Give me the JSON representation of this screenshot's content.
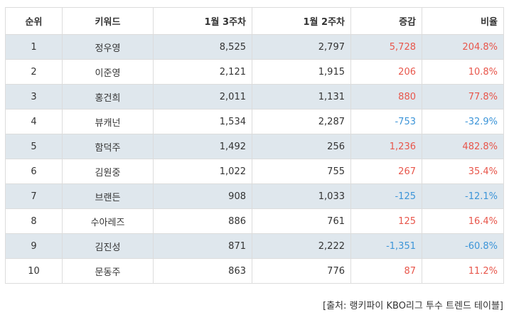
{
  "table": {
    "headers": {
      "rank": "순위",
      "keyword": "키워드",
      "week3": "1월 3주차",
      "week2": "1월 2주차",
      "change": "증감",
      "ratio": "비율"
    },
    "rows": [
      {
        "rank": "1",
        "keyword": "정우영",
        "week3": "8,525",
        "week2": "2,797",
        "change": "5,728",
        "ratio": "204.8%"
      },
      {
        "rank": "2",
        "keyword": "이준영",
        "week3": "2,121",
        "week2": "1,915",
        "change": "206",
        "ratio": "10.8%"
      },
      {
        "rank": "3",
        "keyword": "홍건희",
        "week3": "2,011",
        "week2": "1,131",
        "change": "880",
        "ratio": "77.8%"
      },
      {
        "rank": "4",
        "keyword": "뷰캐넌",
        "week3": "1,534",
        "week2": "2,287",
        "change": "-753",
        "ratio": "-32.9%"
      },
      {
        "rank": "5",
        "keyword": "함덕주",
        "week3": "1,492",
        "week2": "256",
        "change": "1,236",
        "ratio": "482.8%"
      },
      {
        "rank": "6",
        "keyword": "김원중",
        "week3": "1,022",
        "week2": "755",
        "change": "267",
        "ratio": "35.4%"
      },
      {
        "rank": "7",
        "keyword": "브랜든",
        "week3": "908",
        "week2": "1,033",
        "change": "-125",
        "ratio": "-12.1%"
      },
      {
        "rank": "8",
        "keyword": "수아레즈",
        "week3": "886",
        "week2": "761",
        "change": "125",
        "ratio": "16.4%"
      },
      {
        "rank": "9",
        "keyword": "김진성",
        "week3": "871",
        "week2": "2,222",
        "change": "-1,351",
        "ratio": "-60.8%"
      },
      {
        "rank": "10",
        "keyword": "문동주",
        "week3": "863",
        "week2": "776",
        "change": "87",
        "ratio": "11.2%"
      }
    ]
  },
  "colors": {
    "positive": "#e8564b",
    "negative": "#3d95d8",
    "shaded_row": "#dfe7ed"
  },
  "source": "[출처: 랭키파이 KBO리그 투수 트렌드 테이블]"
}
